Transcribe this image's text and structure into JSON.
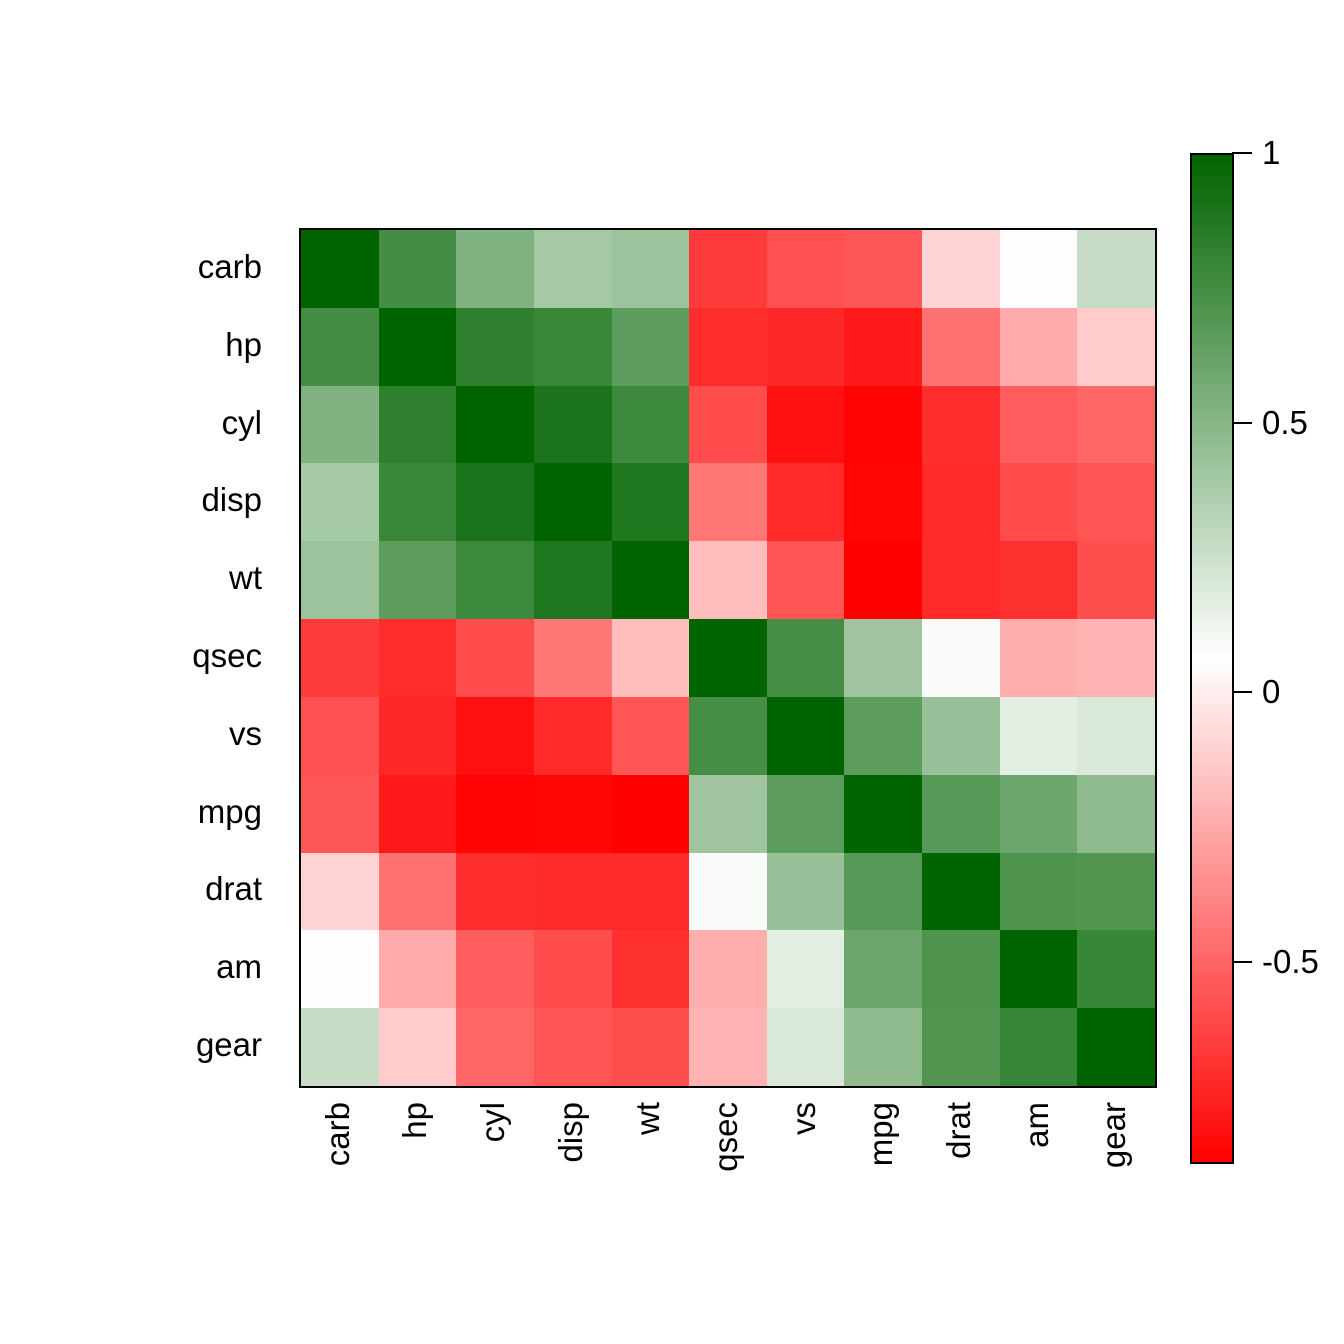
{
  "figure": {
    "background": "#FFFFFF"
  },
  "chart_data": {
    "type": "heatmap",
    "title": "",
    "xlabel": "",
    "ylabel": "",
    "variables": [
      "carb",
      "hp",
      "cyl",
      "disp",
      "wt",
      "qsec",
      "vs",
      "mpg",
      "drat",
      "am",
      "gear"
    ],
    "row_labels": [
      "carb",
      "hp",
      "cyl",
      "disp",
      "wt",
      "qsec",
      "vs",
      "mpg",
      "drat",
      "am",
      "gear"
    ],
    "col_labels": [
      "carb",
      "hp",
      "cyl",
      "disp",
      "wt",
      "qsec",
      "vs",
      "mpg",
      "drat",
      "am",
      "gear"
    ],
    "matrix": [
      [
        1.0,
        0.75,
        0.527,
        0.395,
        0.428,
        -0.656,
        -0.57,
        -0.551,
        -0.091,
        0.058,
        0.274
      ],
      [
        0.75,
        1.0,
        0.832,
        0.791,
        0.659,
        -0.708,
        -0.723,
        -0.776,
        -0.449,
        -0.243,
        -0.126
      ],
      [
        0.527,
        0.832,
        1.0,
        0.902,
        0.782,
        -0.591,
        -0.811,
        -0.852,
        -0.7,
        -0.523,
        -0.493
      ],
      [
        0.395,
        0.791,
        0.902,
        1.0,
        0.888,
        -0.434,
        -0.71,
        -0.848,
        -0.71,
        -0.591,
        -0.556
      ],
      [
        0.428,
        0.659,
        0.782,
        0.888,
        1.0,
        -0.175,
        -0.555,
        -0.868,
        -0.712,
        -0.692,
        -0.583
      ],
      [
        -0.656,
        -0.708,
        -0.591,
        -0.434,
        -0.175,
        1.0,
        0.745,
        0.419,
        0.091,
        -0.23,
        -0.213
      ],
      [
        -0.57,
        -0.723,
        -0.811,
        -0.71,
        -0.555,
        0.745,
        1.0,
        0.664,
        0.44,
        0.168,
        0.206
      ],
      [
        -0.551,
        -0.776,
        -0.852,
        -0.848,
        -0.868,
        0.419,
        0.664,
        1.0,
        0.681,
        0.6,
        0.48
      ],
      [
        -0.091,
        -0.449,
        -0.7,
        -0.71,
        -0.712,
        0.091,
        0.44,
        0.681,
        1.0,
        0.713,
        0.7
      ],
      [
        0.058,
        -0.243,
        -0.523,
        -0.591,
        -0.692,
        -0.23,
        0.168,
        0.6,
        0.713,
        1.0,
        0.794
      ],
      [
        0.274,
        -0.126,
        -0.493,
        -0.556,
        -0.583,
        -0.213,
        0.206,
        0.48,
        0.7,
        0.794,
        1.0
      ]
    ],
    "color_scale": {
      "domain_min": -0.868,
      "domain_max": 1,
      "min_color": "#FF0000",
      "mid_color": "#FFFFFF",
      "max_color": "#006400"
    },
    "legend": {
      "position": "right",
      "tick_labels": [
        "1",
        "0.5",
        "0",
        "-0.5"
      ],
      "tick_values": [
        1,
        0.5,
        0,
        -0.5
      ]
    },
    "grid": false
  }
}
